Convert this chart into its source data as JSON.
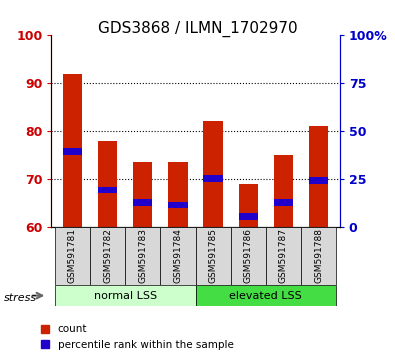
{
  "title": "GDS3868 / ILMN_1702970",
  "categories": [
    "GSM591781",
    "GSM591782",
    "GSM591783",
    "GSM591784",
    "GSM591785",
    "GSM591786",
    "GSM591787",
    "GSM591788"
  ],
  "red_top": [
    92,
    78,
    73.5,
    73.5,
    82,
    69,
    75,
    81
  ],
  "red_bottom": [
    60,
    60,
    60,
    60,
    60,
    60,
    60,
    60
  ],
  "blue_top": [
    76.5,
    68.3,
    65.7,
    65.2,
    70.7,
    62.8,
    65.7,
    70.3
  ],
  "blue_bottom": [
    75.0,
    67.0,
    64.3,
    63.8,
    69.3,
    61.4,
    64.3,
    69.0
  ],
  "ylim": [
    60,
    100
  ],
  "yticks_left": [
    60,
    70,
    80,
    90,
    100
  ],
  "yticks_right": [
    0,
    25,
    50,
    75,
    100
  ],
  "ytick_left_labels": [
    "60",
    "70",
    "80",
    "90",
    "100"
  ],
  "ytick_right_labels": [
    "0",
    "25",
    "50",
    "75",
    "100%"
  ],
  "left_axis_color": "#cc0000",
  "right_axis_color": "#0000cc",
  "bar_color": "#cc2200",
  "blue_color": "#2200cc",
  "group1_label": "normal LSS",
  "group2_label": "elevated LSS",
  "group1_color": "#ccffcc",
  "group2_color": "#44dd44",
  "stress_label": "stress",
  "legend_red": "count",
  "legend_blue": "percentile rank within the sample",
  "bar_width": 0.55,
  "figsize": [
    3.95,
    3.54
  ],
  "dpi": 100
}
